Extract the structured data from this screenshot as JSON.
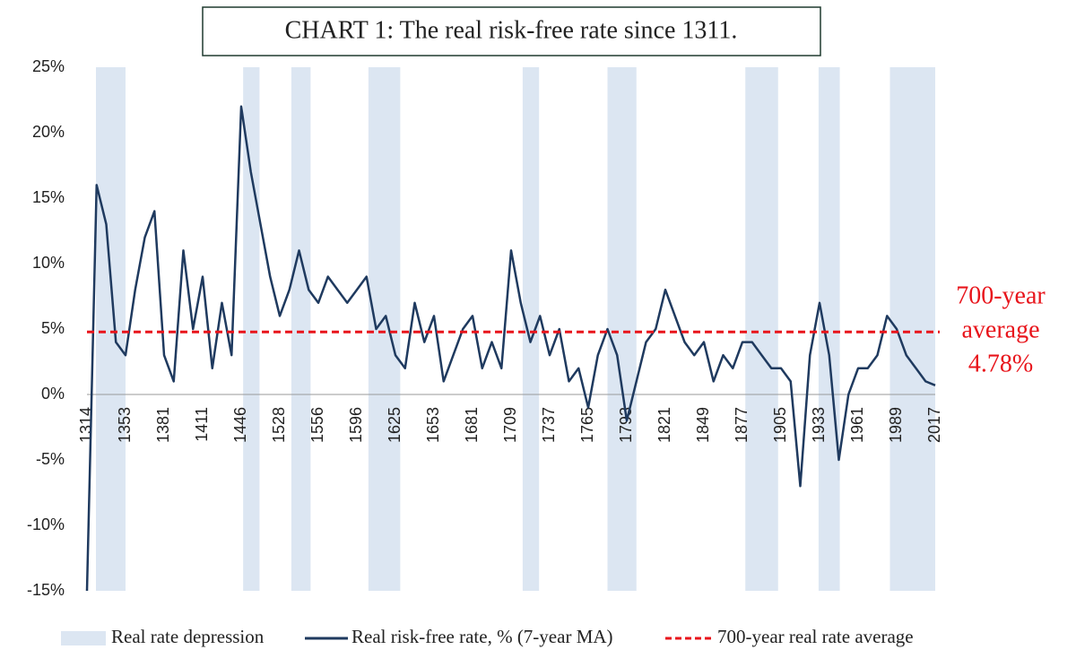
{
  "chart_data": {
    "type": "line",
    "title": "CHART 1: The real risk-free rate since 1311.",
    "categories": [
      "1314",
      null,
      null,
      null,
      "1353",
      null,
      null,
      null,
      "1381",
      null,
      null,
      null,
      "1411",
      null,
      null,
      null,
      "1446",
      null,
      null,
      null,
      "1528",
      null,
      null,
      null,
      "1556",
      null,
      null,
      null,
      "1596",
      null,
      null,
      null,
      "1625",
      null,
      null,
      null,
      "1653",
      null,
      null,
      null,
      "1681",
      null,
      null,
      null,
      "1709",
      null,
      null,
      null,
      "1737",
      null,
      null,
      null,
      "1765",
      null,
      null,
      null,
      "1793",
      null,
      null,
      null,
      "1821",
      null,
      null,
      null,
      "1849",
      null,
      null,
      null,
      "1877",
      null,
      null,
      null,
      "1905",
      null,
      null,
      null,
      "1933",
      null,
      null,
      null,
      "1961",
      null,
      null,
      null,
      "1989",
      null,
      null,
      null,
      "2017"
    ],
    "series": [
      {
        "name": "Real risk-free rate, % (7-year MA)",
        "color": "#1f3a5f",
        "values": [
          -15,
          16,
          13,
          4,
          3,
          8,
          12,
          14,
          3,
          1,
          11,
          5,
          9,
          2,
          7,
          3,
          22,
          17,
          13,
          9,
          6,
          8,
          11,
          8,
          7,
          9,
          8,
          7,
          8,
          9,
          5,
          6,
          3,
          2,
          7,
          4,
          6,
          1,
          3,
          5,
          6,
          2,
          4,
          2,
          11,
          7,
          4,
          6,
          3,
          5,
          1,
          2,
          -1,
          3,
          5,
          3,
          -2,
          1,
          4,
          5,
          8,
          6,
          4,
          3,
          4,
          1,
          3,
          2,
          4,
          4,
          3,
          2,
          2,
          1,
          -7,
          3,
          7,
          3,
          -5,
          0,
          2,
          2,
          3,
          6,
          5,
          3,
          2,
          1,
          0.7
        ]
      },
      {
        "name": "700-year real rate average",
        "color": "#e8141b",
        "value": 4.78,
        "style": "dashed"
      }
    ],
    "bands": {
      "name": "Real rate depression",
      "color": "#dce6f2",
      "ranges": [
        [
          0.93,
          4.0
        ],
        [
          16.2,
          17.9
        ],
        [
          21.2,
          23.2
        ],
        [
          29.2,
          32.5
        ],
        [
          45.2,
          46.9
        ],
        [
          54.0,
          57.0
        ],
        [
          68.3,
          71.7
        ],
        [
          75.9,
          78.1
        ],
        [
          83.3,
          88.0
        ]
      ]
    },
    "annotation": [
      "700-year",
      "average",
      "4.78%"
    ],
    "ylim": [
      -15,
      25
    ],
    "yticks": [
      {
        "value": -15,
        "label": "-15%"
      },
      {
        "value": -10,
        "label": "-10%"
      },
      {
        "value": -5,
        "label": "-5%"
      },
      {
        "value": 0,
        "label": "0%"
      },
      {
        "value": 5,
        "label": "5%"
      },
      {
        "value": 10,
        "label": "10%"
      },
      {
        "value": 15,
        "label": "15%"
      },
      {
        "value": 20,
        "label": "20%"
      },
      {
        "value": 25,
        "label": "25%"
      }
    ],
    "grid": false,
    "legend": "bottom"
  }
}
